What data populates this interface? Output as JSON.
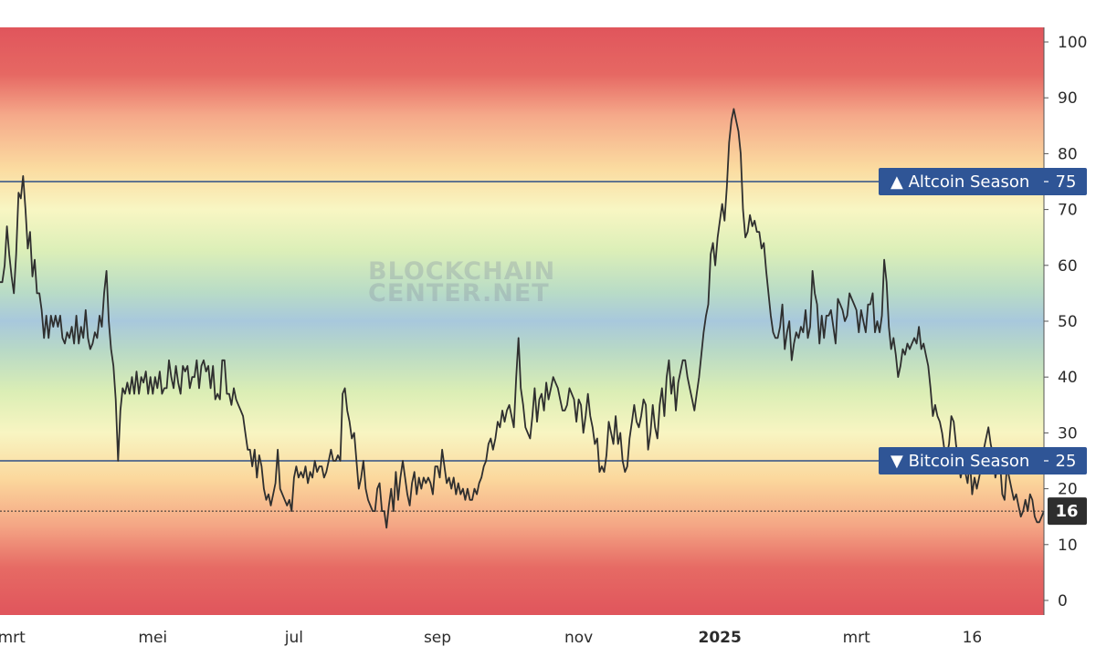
{
  "chart_data": {
    "type": "line",
    "watermark": [
      "BLOCKCHAIN",
      "CENTER.NET"
    ],
    "ylim": [
      -2,
      102
    ],
    "yticks": [
      0,
      10,
      20,
      30,
      40,
      50,
      60,
      70,
      80,
      90,
      100
    ],
    "x_tick_labels": [
      {
        "label": "mrt",
        "index": 5,
        "bold": false
      },
      {
        "label": "mei",
        "index": 66,
        "bold": false
      },
      {
        "label": "jul",
        "index": 127,
        "bold": false
      },
      {
        "label": "sep",
        "index": 189,
        "bold": false
      },
      {
        "label": "nov",
        "index": 250,
        "bold": false
      },
      {
        "label": "2025",
        "index": 311,
        "bold": true
      },
      {
        "label": "mrt",
        "index": 370,
        "bold": false
      },
      {
        "label": "16",
        "index": 420,
        "bold": false
      }
    ],
    "thresholds": [
      {
        "label": "▲ Altcoin Season",
        "value": 75,
        "value_label": "75"
      },
      {
        "label": "▼ Bitcoin Season",
        "value": 25,
        "value_label": "25"
      }
    ],
    "current": {
      "value": 16,
      "label": "16"
    },
    "colors": {
      "line": "#2f2f2f",
      "threshold_line": "#2e4f86",
      "tag_bg": "#2f5596",
      "current_bg": "#2e2e2e",
      "gradient_top": "#e0555c",
      "gradient_mid": "#f7f4bf",
      "gradient_center": "#a9cadb"
    },
    "series": [
      {
        "values": [
          57,
          57,
          60,
          67,
          62,
          58,
          55,
          62,
          73,
          72,
          76,
          70,
          63,
          66,
          58,
          61,
          55,
          55,
          52,
          47,
          51,
          47,
          51,
          49,
          51,
          49,
          51,
          47,
          46,
          48,
          47,
          49,
          46,
          51,
          46,
          49,
          47,
          52,
          47,
          45,
          46,
          48,
          47,
          51,
          49,
          55,
          59,
          50,
          45,
          42,
          36,
          25,
          34,
          38,
          37,
          39,
          37,
          40,
          37,
          41,
          37,
          40,
          39,
          41,
          37,
          40,
          37,
          40,
          38,
          41,
          37,
          38,
          38,
          43,
          40,
          38,
          42,
          39,
          37,
          42,
          41,
          42,
          38,
          40,
          40,
          43,
          38,
          42,
          43,
          41,
          42,
          38,
          42,
          36,
          37,
          36,
          43,
          43,
          37,
          37,
          35,
          38,
          36,
          35,
          34,
          33,
          30,
          27,
          27,
          24,
          27,
          22,
          26,
          24,
          20,
          18,
          19,
          17,
          19,
          21,
          27,
          20,
          19,
          18,
          17,
          18,
          16,
          22,
          24,
          22,
          23,
          22,
          24,
          21,
          23,
          22,
          25,
          23,
          24,
          24,
          22,
          23,
          25,
          27,
          25,
          25,
          26,
          25,
          37,
          38,
          34,
          32,
          29,
          30,
          25,
          20,
          22,
          25,
          20,
          18,
          17,
          16,
          16,
          20,
          21,
          16,
          16,
          13,
          17,
          20,
          16,
          23,
          18,
          22,
          25,
          22,
          19,
          17,
          21,
          23,
          19,
          22,
          20,
          22,
          21,
          22,
          21,
          19,
          24,
          24,
          22,
          27,
          24,
          21,
          22,
          20,
          22,
          19,
          21,
          19,
          20,
          18,
          20,
          18,
          18,
          20,
          19,
          21,
          22,
          24,
          25,
          28,
          29,
          27,
          29,
          32,
          31,
          34,
          32,
          34,
          35,
          33,
          31,
          40,
          47,
          38,
          35,
          31,
          30,
          29,
          33,
          38,
          32,
          36,
          37,
          34,
          39,
          36,
          38,
          40,
          39,
          38,
          36,
          34,
          34,
          35,
          38,
          37,
          36,
          32,
          36,
          35,
          30,
          33,
          37,
          33,
          31,
          28,
          29,
          23,
          24,
          23,
          26,
          32,
          30,
          28,
          33,
          28,
          30,
          25,
          23,
          24,
          29,
          32,
          35,
          32,
          31,
          33,
          36,
          35,
          27,
          30,
          35,
          31,
          29,
          35,
          38,
          33,
          40,
          43,
          37,
          40,
          34,
          39,
          41,
          43,
          43,
          40,
          38,
          36,
          34,
          37,
          40,
          44,
          48,
          51,
          53,
          62,
          64,
          60,
          65,
          68,
          71,
          68,
          74,
          82,
          86,
          88,
          86,
          84,
          80,
          70,
          65,
          66,
          69,
          67,
          68,
          66,
          66,
          63,
          64,
          59,
          55,
          51,
          48,
          47,
          47,
          49,
          53,
          45,
          48,
          50,
          43,
          46,
          48,
          47,
          49,
          48,
          52,
          47,
          49,
          59,
          55,
          53,
          46,
          51,
          47,
          51,
          51,
          52,
          49,
          46,
          54,
          53,
          52,
          50,
          51,
          55,
          54,
          53,
          52,
          48,
          52,
          50,
          48,
          53,
          53,
          55,
          48,
          50,
          48,
          51,
          61,
          57,
          49,
          45,
          47,
          44,
          40,
          42,
          45,
          44,
          46,
          45,
          46,
          47,
          46,
          49,
          45,
          46,
          44,
          42,
          38,
          33,
          35,
          33,
          32,
          30,
          27,
          26,
          28,
          33,
          32,
          28,
          25,
          22,
          24,
          23,
          21,
          25,
          19,
          22,
          20,
          22,
          24,
          27,
          29,
          31,
          28,
          26,
          22,
          24,
          25,
          19,
          18,
          24,
          22,
          20,
          18,
          19,
          17,
          15,
          16,
          18,
          16,
          19,
          18,
          15,
          14,
          14,
          15,
          16
        ]
      }
    ]
  }
}
